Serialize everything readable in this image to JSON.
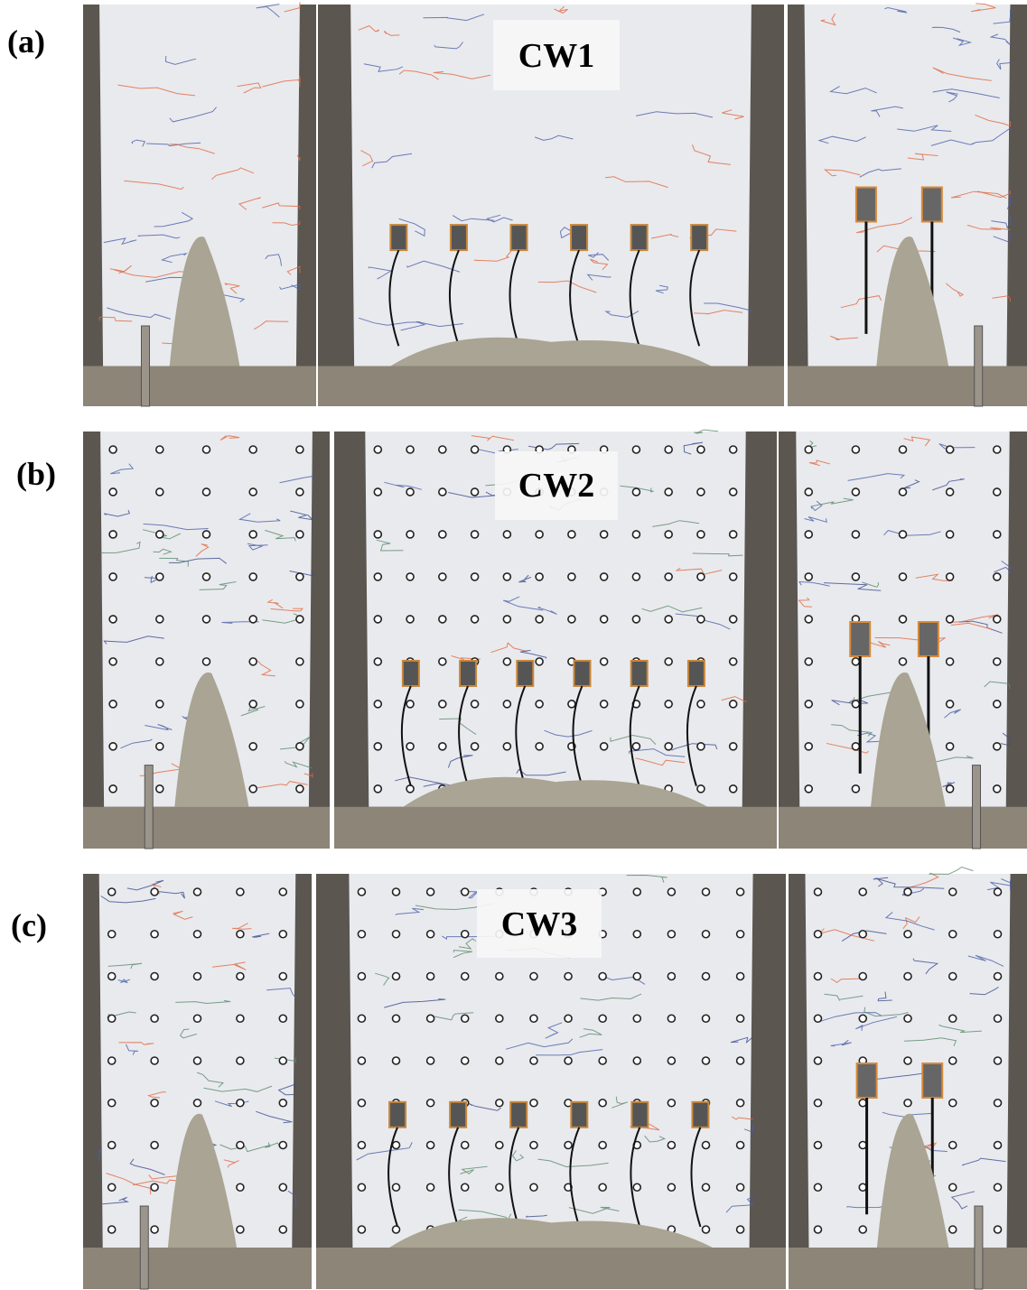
{
  "panels": [
    {
      "label": "(a)",
      "title": "CW1"
    },
    {
      "label": "(b)",
      "title": "CW2"
    },
    {
      "label": "(c)",
      "title": "CW3"
    }
  ]
}
